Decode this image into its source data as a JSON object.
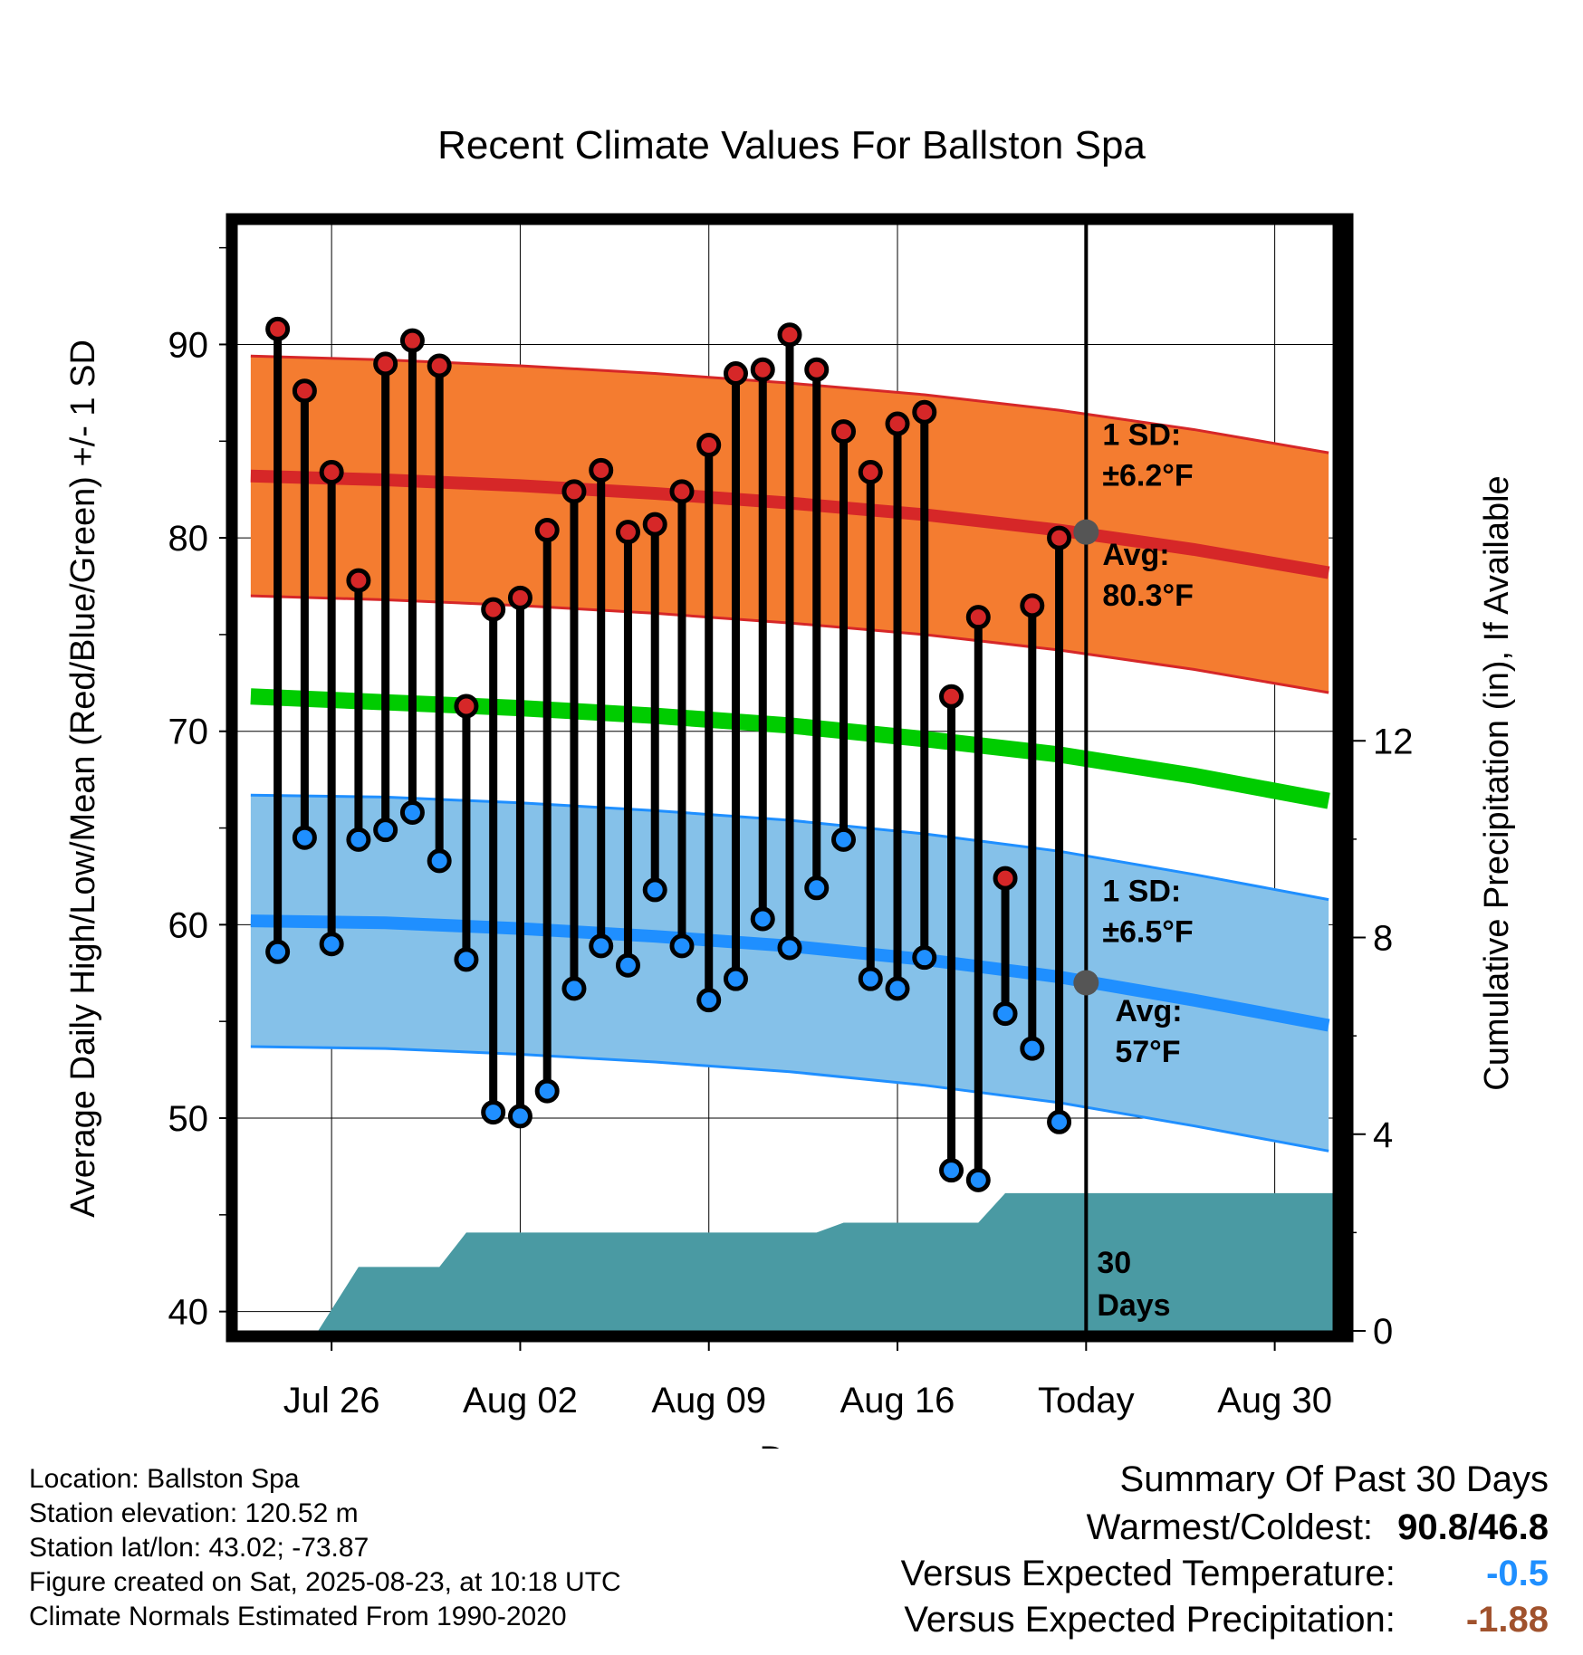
{
  "chart_data": {
    "type": "line",
    "title": "Recent Climate Values For Ballston Spa",
    "xlabel": "Day",
    "ylabel": "Average Daily High/Low/Mean (Red/Blue/Green) +/- 1 SD",
    "y2label": "Cumulative Precipitation (in), If Available",
    "x_tick_labels": [
      "Jul 26",
      "Aug 02",
      "Aug 09",
      "Aug 16",
      "Today",
      "Aug 30"
    ],
    "x_tick_days": [
      3,
      10,
      17,
      24,
      31,
      38
    ],
    "xlim": [
      -0.5,
      40.5
    ],
    "ylim": [
      39,
      96.2
    ],
    "y_ticks": [
      40,
      50,
      60,
      70,
      80,
      90
    ],
    "y2_ticks": [
      0,
      4,
      8,
      12
    ],
    "y2lim": [
      0,
      22.5
    ],
    "grid": true,
    "today_day": 31,
    "days": [
      1,
      2,
      3,
      4,
      5,
      6,
      7,
      8,
      9,
      10,
      11,
      12,
      13,
      14,
      15,
      16,
      17,
      18,
      19,
      20,
      21,
      22,
      23,
      24,
      25,
      26,
      27,
      28,
      29,
      30
    ],
    "highs": [
      90.8,
      87.6,
      83.4,
      77.8,
      89,
      90.2,
      88.9,
      71.3,
      76.3,
      76.9,
      80.4,
      82.4,
      83.5,
      80.3,
      80.7,
      82.4,
      84.8,
      88.5,
      88.7,
      90.5,
      88.7,
      85.5,
      83.4,
      85.9,
      86.5,
      71.8,
      75.9,
      62.4,
      76.5,
      80
    ],
    "lows": [
      58.6,
      64.5,
      59,
      64.4,
      64.9,
      65.8,
      63.3,
      58.2,
      50.3,
      50.1,
      51.4,
      56.7,
      58.9,
      57.9,
      61.8,
      58.9,
      56.1,
      57.2,
      60.3,
      58.8,
      61.9,
      64.4,
      57.2,
      56.7,
      58.3,
      47.3,
      46.8,
      55.4,
      53.6,
      49.8
    ],
    "normal_days": [
      0,
      5,
      10,
      15,
      20,
      25,
      30,
      35,
      40
    ],
    "normal_high": [
      83.2,
      83,
      82.7,
      82.3,
      81.8,
      81.2,
      80.4,
      79.4,
      78.2
    ],
    "normal_high_sd": 6.2,
    "normal_low": [
      60.2,
      60.1,
      59.8,
      59.4,
      58.9,
      58.2,
      57.3,
      56.1,
      54.8
    ],
    "normal_low_sd": 6.5,
    "normal_mean": [
      71.8,
      71.5,
      71.2,
      70.8,
      70.3,
      69.6,
      68.8,
      67.7,
      66.4
    ],
    "precip_steps": [
      {
        "day": 2.5,
        "value": 0
      },
      {
        "day": 4,
        "value": 1.3
      },
      {
        "day": 7,
        "value": 1.3
      },
      {
        "day": 8,
        "value": 2
      },
      {
        "day": 21,
        "value": 2
      },
      {
        "day": 22,
        "value": 2.2
      },
      {
        "day": 27,
        "value": 2.2
      },
      {
        "day": 28,
        "value": 2.8
      },
      {
        "day": 40.5,
        "value": 2.8
      }
    ],
    "annotations": {
      "high_sd": "1 SD:",
      "high_sd_val": "±6.2°F",
      "high_avg": "Avg:",
      "high_avg_val": "80.3°F",
      "low_sd": "1 SD:",
      "low_sd_val": "±6.5°F",
      "low_avg": "Avg:",
      "low_avg_val": "57°F",
      "precip_l1": "30",
      "precip_l2": "Days"
    },
    "today_high_avg": 80.3,
    "today_low_avg": 57,
    "colors": {
      "high": "#d62728",
      "high_band": "#f47c30",
      "low": "#1f8fff",
      "low_band": "#85c1e9",
      "mean": "#00cc00",
      "precip": "#4a9aa3",
      "annot": "#555555"
    }
  },
  "info": {
    "location": "Location: Ballston Spa",
    "elevation": "Station elevation: 120.52 m",
    "latlon": "Station lat/lon: 43.02; -73.87",
    "created": "Figure created on Sat, 2025-08-23, at 10:18 UTC",
    "normals": "Climate Normals Estimated From 1990-2020"
  },
  "summary": {
    "title": "Summary Of Past 30 Days",
    "warmest_label": "Warmest/Coldest:",
    "warmest_value": "90.8/46.8",
    "temp_label": "Versus Expected Temperature:",
    "temp_value": "-0.5",
    "temp_color": "#1f8fff",
    "precip_label": "Versus Expected Precipitation:",
    "precip_value": "-1.88",
    "precip_color": "#a0522d"
  }
}
